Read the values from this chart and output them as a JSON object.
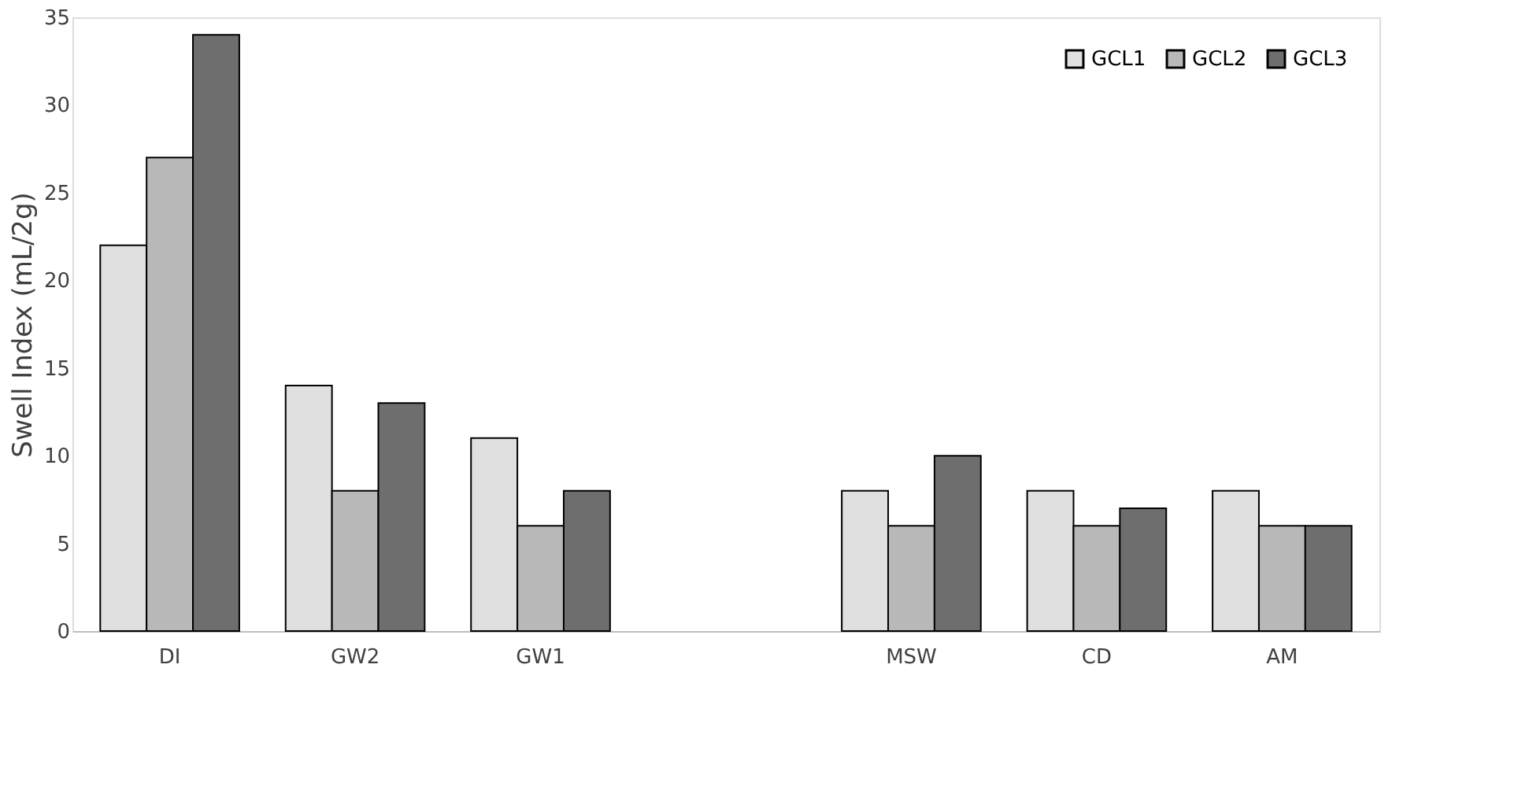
{
  "chart_data": {
    "type": "bar",
    "ylabel": "Swell Index (mL/2g)",
    "categories": [
      "DI",
      "GW2",
      "GW1",
      null,
      "MSW",
      "CD",
      "AM"
    ],
    "series": [
      {
        "name": "GCL1",
        "color": "#e0e0e0",
        "values": [
          22,
          14,
          11,
          null,
          8,
          8,
          8
        ]
      },
      {
        "name": "GCL2",
        "color": "#b8b8b8",
        "values": [
          27,
          8,
          6,
          null,
          6,
          6,
          6
        ]
      },
      {
        "name": "GCL3",
        "color": "#6e6e6e",
        "values": [
          34,
          13,
          8,
          null,
          10,
          7,
          6
        ]
      }
    ],
    "ylim": [
      0,
      35
    ],
    "yticks": [
      0,
      5,
      10,
      15,
      20,
      25,
      30,
      35
    ],
    "grid": false,
    "legend": "top right"
  }
}
